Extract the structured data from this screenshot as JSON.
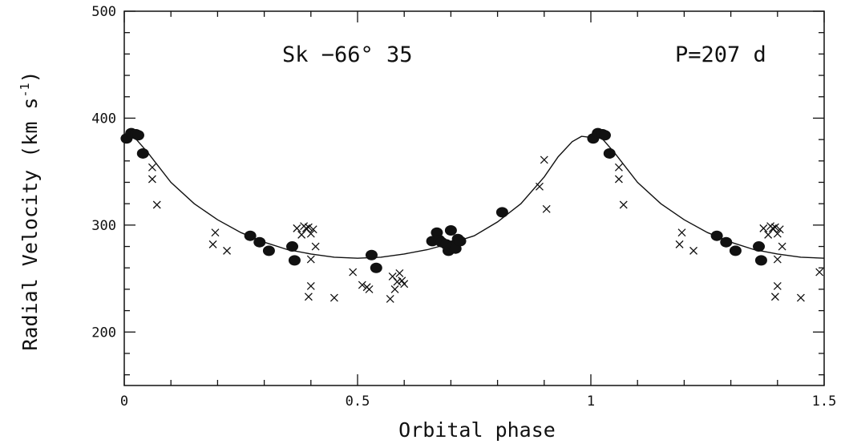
{
  "chart_data": {
    "type": "scatter",
    "title": "",
    "xlabel": "Orbital phase",
    "ylabel": "Radial Velocity (km s",
    "ylabel_unit_exp": "-1",
    "ylabel_close": ")",
    "xlim": [
      0,
      1.5
    ],
    "ylim": [
      150,
      500
    ],
    "xticks": [
      0,
      0.5,
      1,
      1.5
    ],
    "xtick_labels": [
      "0",
      "0.5",
      "1",
      "1.5"
    ],
    "yticks": [
      200,
      300,
      400,
      500
    ],
    "ytick_labels": [
      "200",
      "300",
      "400",
      "500"
    ],
    "grid": false,
    "annotations": {
      "star": "Sk −66° 35",
      "period": "P=207 d"
    },
    "series": [
      {
        "marker": "filled-circle",
        "x": [
          0.005,
          0.015,
          0.025,
          0.03,
          0.04,
          0.27,
          0.29,
          0.31,
          0.36,
          0.365,
          0.53,
          0.54,
          0.66,
          0.67,
          0.675,
          0.68,
          0.69,
          0.695,
          0.7,
          0.705,
          0.71,
          0.715,
          0.72,
          0.81,
          1.005,
          1.015,
          1.025,
          1.03,
          1.04,
          1.27,
          1.29,
          1.31,
          1.36,
          1.365
        ],
        "y": [
          381,
          386,
          385,
          384,
          367,
          290,
          284,
          276,
          280,
          267,
          272,
          260,
          285,
          293,
          286,
          284,
          282,
          276,
          295,
          281,
          278,
          287,
          285,
          312,
          381,
          386,
          385,
          384,
          367,
          290,
          284,
          276,
          280,
          267
        ]
      },
      {
        "marker": "cross",
        "x": [
          0.06,
          0.06,
          0.07,
          0.19,
          0.195,
          0.22,
          0.37,
          0.38,
          0.385,
          0.39,
          0.395,
          0.4,
          0.4,
          0.405,
          0.41,
          0.4,
          0.395,
          0.45,
          0.49,
          0.51,
          0.52,
          0.525,
          0.57,
          0.575,
          0.58,
          0.59,
          0.595,
          0.6,
          0.585,
          0.89,
          0.9,
          0.905,
          1.06,
          1.06,
          1.07,
          1.19,
          1.195,
          1.22,
          1.37,
          1.38,
          1.385,
          1.39,
          1.395,
          1.4,
          1.4,
          1.405,
          1.41,
          1.4,
          1.395,
          1.45,
          1.49
        ],
        "y": [
          354,
          343,
          319,
          282,
          293,
          276,
          297,
          291,
          299,
          297,
          298,
          292,
          268,
          296,
          280,
          243,
          233,
          232,
          256,
          244,
          242,
          240,
          231,
          252,
          240,
          255,
          248,
          245,
          247,
          336,
          361,
          315,
          354,
          343,
          319,
          282,
          293,
          276,
          297,
          291,
          299,
          297,
          298,
          292,
          268,
          296,
          280,
          243,
          233,
          232,
          256
        ]
      },
      {
        "type": "line",
        "marker": "none",
        "x": [
          0.0,
          0.02,
          0.05,
          0.1,
          0.15,
          0.2,
          0.25,
          0.3,
          0.35,
          0.4,
          0.45,
          0.5,
          0.55,
          0.6,
          0.65,
          0.7,
          0.75,
          0.8,
          0.85,
          0.9,
          0.93,
          0.96,
          0.98,
          1.0,
          1.02,
          1.05,
          1.1,
          1.15,
          1.2,
          1.25,
          1.3,
          1.35,
          1.4,
          1.45,
          1.5
        ],
        "y": [
          382,
          383,
          368,
          340,
          320,
          305,
          293,
          284,
          277,
          273,
          270,
          269,
          270,
          273,
          277,
          283,
          290,
          303,
          320,
          345,
          364,
          378,
          383,
          382,
          383,
          368,
          340,
          320,
          305,
          293,
          284,
          277,
          273,
          270,
          269
        ]
      }
    ]
  }
}
